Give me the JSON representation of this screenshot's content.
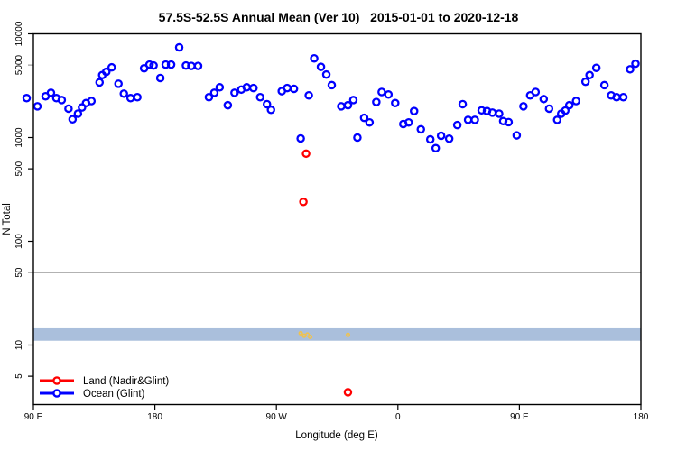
{
  "title": "57.5S-52.5S Annual Mean (Ver 10)   2015-01-01 to 2020-12-18",
  "colors": {
    "ocean": "#0000ff",
    "land": "#ff0000",
    "band": "#aabfdc",
    "small_markers": "#f0c24e",
    "reference_line": "#999999",
    "axis": "#000000"
  },
  "legend": {
    "items": [
      {
        "label": "Land (Nadir&Glint)",
        "color": "#ff0000"
      },
      {
        "label": "Ocean (Glint)",
        "color": "#0000ff"
      }
    ]
  },
  "chart_data": {
    "type": "scatter",
    "title": "57.5S-52.5S Annual Mean (Ver 10)   2015-01-01 to 2020-12-18",
    "xlabel": "Longitude (deg E)",
    "ylabel": "N Total",
    "x_axis": {
      "range_deg": [
        90,
        540
      ],
      "note": "longitude axis wraps eastward: 90E to 180 to 90W to 0 to 90E to 180; point x values are position along this wrapped axis in degrees",
      "ticks": [
        {
          "deg": 90,
          "label": "90 E"
        },
        {
          "deg": 180,
          "label": "180"
        },
        {
          "deg": 270,
          "label": "90 W"
        },
        {
          "deg": 360,
          "label": "0"
        },
        {
          "deg": 450,
          "label": "90 E"
        },
        {
          "deg": 540,
          "label": "180"
        }
      ]
    },
    "y_axis": {
      "scale": "log",
      "ticks": [
        10000,
        5000,
        1000,
        500,
        100,
        50,
        10,
        5
      ],
      "tick_labels": [
        "10000",
        "5000",
        "1000",
        "500",
        "100",
        "50",
        "10",
        "5"
      ],
      "gray_ticks": [
        5000,
        50
      ],
      "range": [
        3,
        10000
      ]
    },
    "reference_line": {
      "value": 50
    },
    "band": {
      "value_min": 11,
      "value_max": 14.5
    },
    "series": [
      {
        "name": "Ocean (Glint)",
        "marker": "open-circle",
        "color": "#0000ff",
        "points": [
          [
            85,
            2400
          ],
          [
            93,
            2000
          ],
          [
            99,
            2500
          ],
          [
            103,
            2700
          ],
          [
            107,
            2400
          ],
          [
            111,
            2300
          ],
          [
            116,
            1900
          ],
          [
            119,
            1500
          ],
          [
            123,
            1700
          ],
          [
            126,
            1950
          ],
          [
            129,
            2150
          ],
          [
            133,
            2250
          ],
          [
            139,
            3400
          ],
          [
            141,
            4000
          ],
          [
            144,
            4300
          ],
          [
            148,
            4750
          ],
          [
            153,
            3300
          ],
          [
            157,
            2650
          ],
          [
            162,
            2400
          ],
          [
            167,
            2450
          ],
          [
            172,
            4650
          ],
          [
            176,
            5050
          ],
          [
            179,
            4950
          ],
          [
            184,
            3750
          ],
          [
            188,
            5050
          ],
          [
            192,
            5050
          ],
          [
            198,
            7400
          ],
          [
            203,
            4950
          ],
          [
            207,
            4900
          ],
          [
            212,
            4900
          ],
          [
            220,
            2450
          ],
          [
            224,
            2700
          ],
          [
            228,
            3050
          ],
          [
            234,
            2050
          ],
          [
            239,
            2700
          ],
          [
            244,
            2900
          ],
          [
            248,
            3050
          ],
          [
            253,
            3000
          ],
          [
            258,
            2450
          ],
          [
            263,
            2100
          ],
          [
            266,
            1850
          ],
          [
            274,
            2800
          ],
          [
            278,
            3000
          ],
          [
            283,
            2950
          ],
          [
            288,
            980
          ],
          [
            294,
            2550
          ],
          [
            298,
            5800
          ],
          [
            303,
            4800
          ],
          [
            307,
            4050
          ],
          [
            311,
            3200
          ],
          [
            318,
            2000
          ],
          [
            323,
            2050
          ],
          [
            327,
            2300
          ],
          [
            330,
            1000
          ],
          [
            335,
            1550
          ],
          [
            339,
            1400
          ],
          [
            344,
            2200
          ],
          [
            348,
            2750
          ],
          [
            353,
            2600
          ],
          [
            358,
            2150
          ],
          [
            364,
            1350
          ],
          [
            368,
            1400
          ],
          [
            372,
            1800
          ],
          [
            377,
            1200
          ],
          [
            384,
            960
          ],
          [
            388,
            790
          ],
          [
            392,
            1040
          ],
          [
            398,
            975
          ],
          [
            404,
            1320
          ],
          [
            408,
            2100
          ],
          [
            412,
            1480
          ],
          [
            417,
            1480
          ],
          [
            422,
            1830
          ],
          [
            426,
            1800
          ],
          [
            430,
            1740
          ],
          [
            435,
            1700
          ],
          [
            438,
            1440
          ],
          [
            442,
            1410
          ],
          [
            448,
            1050
          ],
          [
            453,
            2000
          ],
          [
            458,
            2550
          ],
          [
            462,
            2750
          ],
          [
            468,
            2350
          ],
          [
            472,
            1900
          ],
          [
            478,
            1480
          ],
          [
            481,
            1700
          ],
          [
            484,
            1820
          ],
          [
            487,
            2050
          ],
          [
            492,
            2250
          ],
          [
            499,
            3450
          ],
          [
            502,
            4000
          ],
          [
            507,
            4700
          ],
          [
            513,
            3200
          ],
          [
            518,
            2550
          ],
          [
            522,
            2450
          ],
          [
            527,
            2450
          ],
          [
            532,
            4550
          ],
          [
            536,
            5150
          ]
        ]
      },
      {
        "name": "Land (Nadir&Glint)",
        "marker": "open-circle",
        "color": "#ff0000",
        "points": [
          [
            292,
            700
          ],
          [
            290,
            240
          ],
          [
            323,
            3.5
          ]
        ]
      },
      {
        "name": "unlabeled-small-markers",
        "marker": "small-open-circle",
        "color": "#f0c24e",
        "points": [
          [
            288,
            13
          ],
          [
            290.5,
            12.3
          ],
          [
            293,
            12.6
          ],
          [
            295,
            12
          ],
          [
            323,
            12.5
          ]
        ]
      }
    ]
  }
}
